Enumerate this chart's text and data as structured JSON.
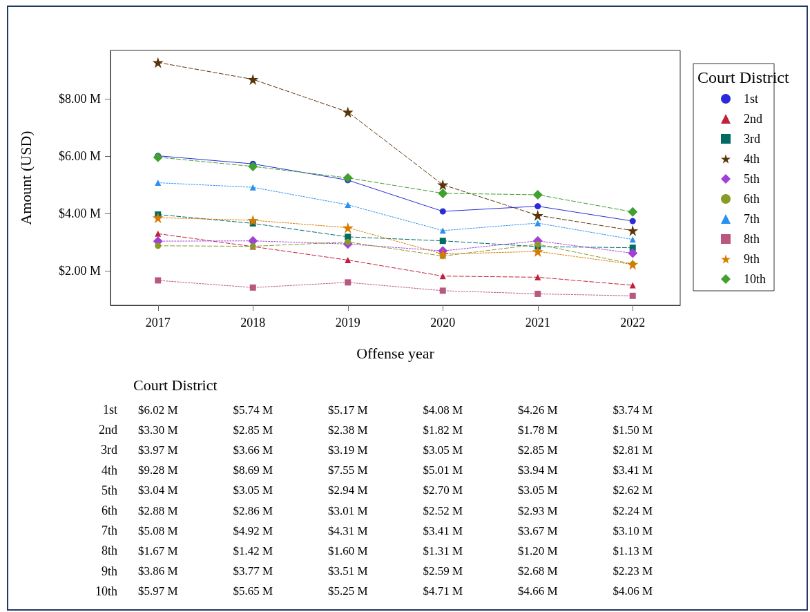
{
  "chart_data": {
    "type": "line",
    "xlabel": "Offense year",
    "ylabel": "Amount (USD)",
    "legend_title": "Court District",
    "categories": [
      "2017",
      "2018",
      "2019",
      "2020",
      "2021",
      "2022"
    ],
    "ylim": [
      0.8,
      9.7
    ],
    "yticks": [
      {
        "value": 2,
        "label": "$2.00 M"
      },
      {
        "value": 4,
        "label": "$4.00 M"
      },
      {
        "value": 6,
        "label": "$6.00 M"
      },
      {
        "value": 8,
        "label": "$8.00 M"
      }
    ],
    "grid": false,
    "legend": "right",
    "series": [
      {
        "name": "1st",
        "color": "#2a2ad8",
        "marker": "circle",
        "line_style": "solid",
        "values": [
          6.02,
          5.74,
          5.17,
          4.08,
          4.26,
          3.74
        ],
        "value_labels": [
          "$6.02 M",
          "$5.74 M",
          "$5.17 M",
          "$4.08 M",
          "$4.26 M",
          "$3.74 M"
        ]
      },
      {
        "name": "2nd",
        "color": "#c0203a",
        "marker": "triangle",
        "line_style": "dashed",
        "values": [
          3.3,
          2.85,
          2.38,
          1.82,
          1.78,
          1.5
        ],
        "value_labels": [
          "$3.30 M",
          "$2.85 M",
          "$2.38 M",
          "$1.82 M",
          "$1.78 M",
          "$1.50 M"
        ]
      },
      {
        "name": "3rd",
        "color": "#006b63",
        "marker": "square",
        "line_style": "dashed",
        "values": [
          3.97,
          3.66,
          3.19,
          3.05,
          2.85,
          2.81
        ],
        "value_labels": [
          "$3.97 M",
          "$3.66 M",
          "$3.19 M",
          "$3.05 M",
          "$2.85 M",
          "$2.81 M"
        ]
      },
      {
        "name": "4th",
        "color": "#5a3508",
        "marker": "star",
        "line_style": "dashed",
        "values": [
          9.28,
          8.69,
          7.55,
          5.01,
          3.94,
          3.41
        ],
        "value_labels": [
          "$9.28 M",
          "$8.69 M",
          "$7.55 M",
          "$5.01 M",
          "$3.94 M",
          "$3.41 M"
        ]
      },
      {
        "name": "5th",
        "color": "#a040d8",
        "marker": "diamond",
        "line_style": "dotted",
        "values": [
          3.04,
          3.05,
          2.94,
          2.7,
          3.05,
          2.62
        ],
        "value_labels": [
          "$3.04 M",
          "$3.05 M",
          "$2.94 M",
          "$2.70 M",
          "$3.05 M",
          "$2.62 M"
        ]
      },
      {
        "name": "6th",
        "color": "#889a28",
        "marker": "circle",
        "line_style": "dashed",
        "values": [
          2.88,
          2.86,
          3.01,
          2.52,
          2.93,
          2.24
        ],
        "value_labels": [
          "$2.88 M",
          "$2.86 M",
          "$3.01 M",
          "$2.52 M",
          "$2.93 M",
          "$2.24 M"
        ]
      },
      {
        "name": "7th",
        "color": "#2a90f0",
        "marker": "triangle",
        "line_style": "dotted",
        "values": [
          5.08,
          4.92,
          4.31,
          3.41,
          3.67,
          3.1
        ],
        "value_labels": [
          "$5.08 M",
          "$4.92 M",
          "$4.31 M",
          "$3.41 M",
          "$3.67 M",
          "$3.10 M"
        ]
      },
      {
        "name": "8th",
        "color": "#b85880",
        "marker": "square",
        "line_style": "dotted",
        "values": [
          1.67,
          1.42,
          1.6,
          1.31,
          1.2,
          1.13
        ],
        "value_labels": [
          "$1.67 M",
          "$1.42 M",
          "$1.60 M",
          "$1.31 M",
          "$1.20 M",
          "$1.13 M"
        ]
      },
      {
        "name": "9th",
        "color": "#d87a00",
        "marker": "star",
        "line_style": "dotted",
        "values": [
          3.86,
          3.77,
          3.51,
          2.59,
          2.68,
          2.23
        ],
        "value_labels": [
          "$3.86 M",
          "$3.77 M",
          "$3.51 M",
          "$2.59 M",
          "$2.68 M",
          "$2.23 M"
        ]
      },
      {
        "name": "10th",
        "color": "#40a030",
        "marker": "diamond",
        "line_style": "dashed",
        "values": [
          5.97,
          5.65,
          5.25,
          4.71,
          4.66,
          4.06
        ],
        "value_labels": [
          "$5.97 M",
          "$5.65 M",
          "$5.25 M",
          "$4.71 M",
          "$4.66 M",
          "$4.06 M"
        ]
      }
    ]
  }
}
